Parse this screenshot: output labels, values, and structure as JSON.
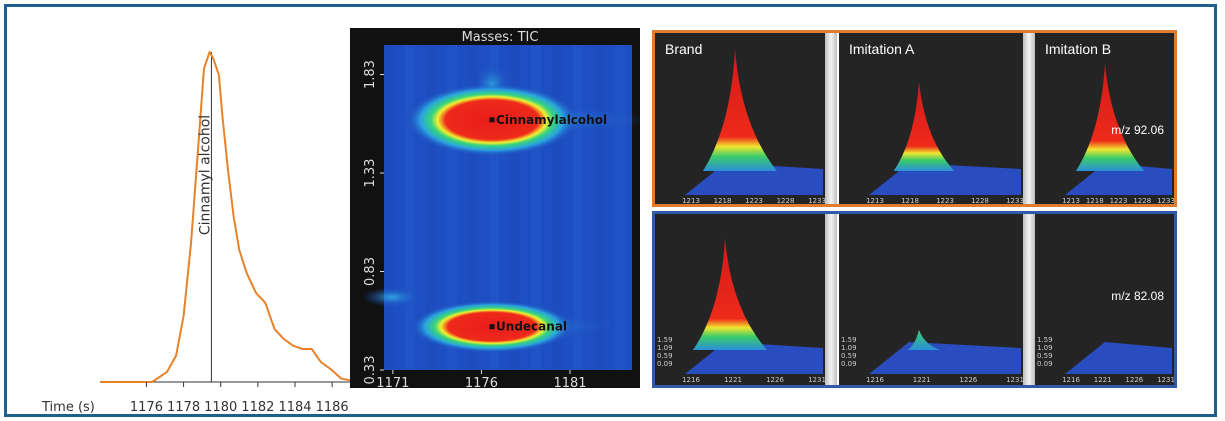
{
  "chromatogram": {
    "xlabel": "Time (s)",
    "peak_label": "Cinnamyl alcohol",
    "x_ticks": [
      "1176",
      "1178",
      "1180",
      "1182",
      "1184",
      "1186"
    ],
    "line_color": "#e8822a"
  },
  "chart_data": [
    {
      "type": "line",
      "xlabel": "Time (s)",
      "ylabel": "",
      "xlim": [
        1173.5,
        1187.5
      ],
      "x": [
        1173.5,
        1176.3,
        1177.1,
        1177.6,
        1178.0,
        1178.4,
        1178.8,
        1179.1,
        1179.4,
        1179.6,
        1179.9,
        1180.1,
        1180.4,
        1180.7,
        1181.0,
        1181.4,
        1181.9,
        1182.4,
        1182.9,
        1183.4,
        1183.9,
        1184.4,
        1184.9,
        1185.4,
        1185.9,
        1186.5,
        1187.5
      ],
      "y": [
        0,
        0,
        3,
        8,
        20,
        42,
        72,
        95,
        100,
        98,
        93,
        80,
        64,
        50,
        40,
        33,
        27,
        24,
        16,
        13,
        11,
        10,
        10,
        6,
        4,
        1,
        0
      ],
      "annotation": "Cinnamyl alcohol",
      "annotation_x": 1179.5
    },
    {
      "type": "heatmap",
      "title": "Masses: TIC",
      "x_ticks": [
        "1171",
        "1176",
        "1181"
      ],
      "y_ticks": [
        "1.83",
        "1.33",
        "0.83",
        "0.33"
      ],
      "xlim": [
        1170.5,
        1184.5
      ],
      "ylim": [
        0.33,
        1.98
      ],
      "spots": [
        {
          "label": "Cinnamylalcohol",
          "x": 1176.6,
          "y": 1.6
        },
        {
          "label": "Undecanal",
          "x": 1176.6,
          "y": 0.55
        }
      ]
    }
  ],
  "surfaces": {
    "top_row": {
      "panels": [
        {
          "label": "Brand",
          "mz": ""
        },
        {
          "label": "Imitation A",
          "mz": ""
        },
        {
          "label": "Imitation B",
          "mz": "m/z 92.06"
        }
      ],
      "x_ticks": [
        "1213",
        "1218",
        "1223",
        "1228",
        "1233"
      ],
      "peak_heights": [
        1.0,
        0.72,
        0.88
      ]
    },
    "bottom_row": {
      "panels": [
        {
          "label": "",
          "mz": ""
        },
        {
          "label": "",
          "mz": ""
        },
        {
          "label": "",
          "mz": "m/z 82.08"
        }
      ],
      "x_ticks": [
        "1216",
        "1221",
        "1226",
        "1231"
      ],
      "y_ticks": [
        "1.59",
        "1.09",
        "0.59",
        "0.09"
      ],
      "peak_heights": [
        1.0,
        0.15,
        0.0
      ]
    }
  }
}
